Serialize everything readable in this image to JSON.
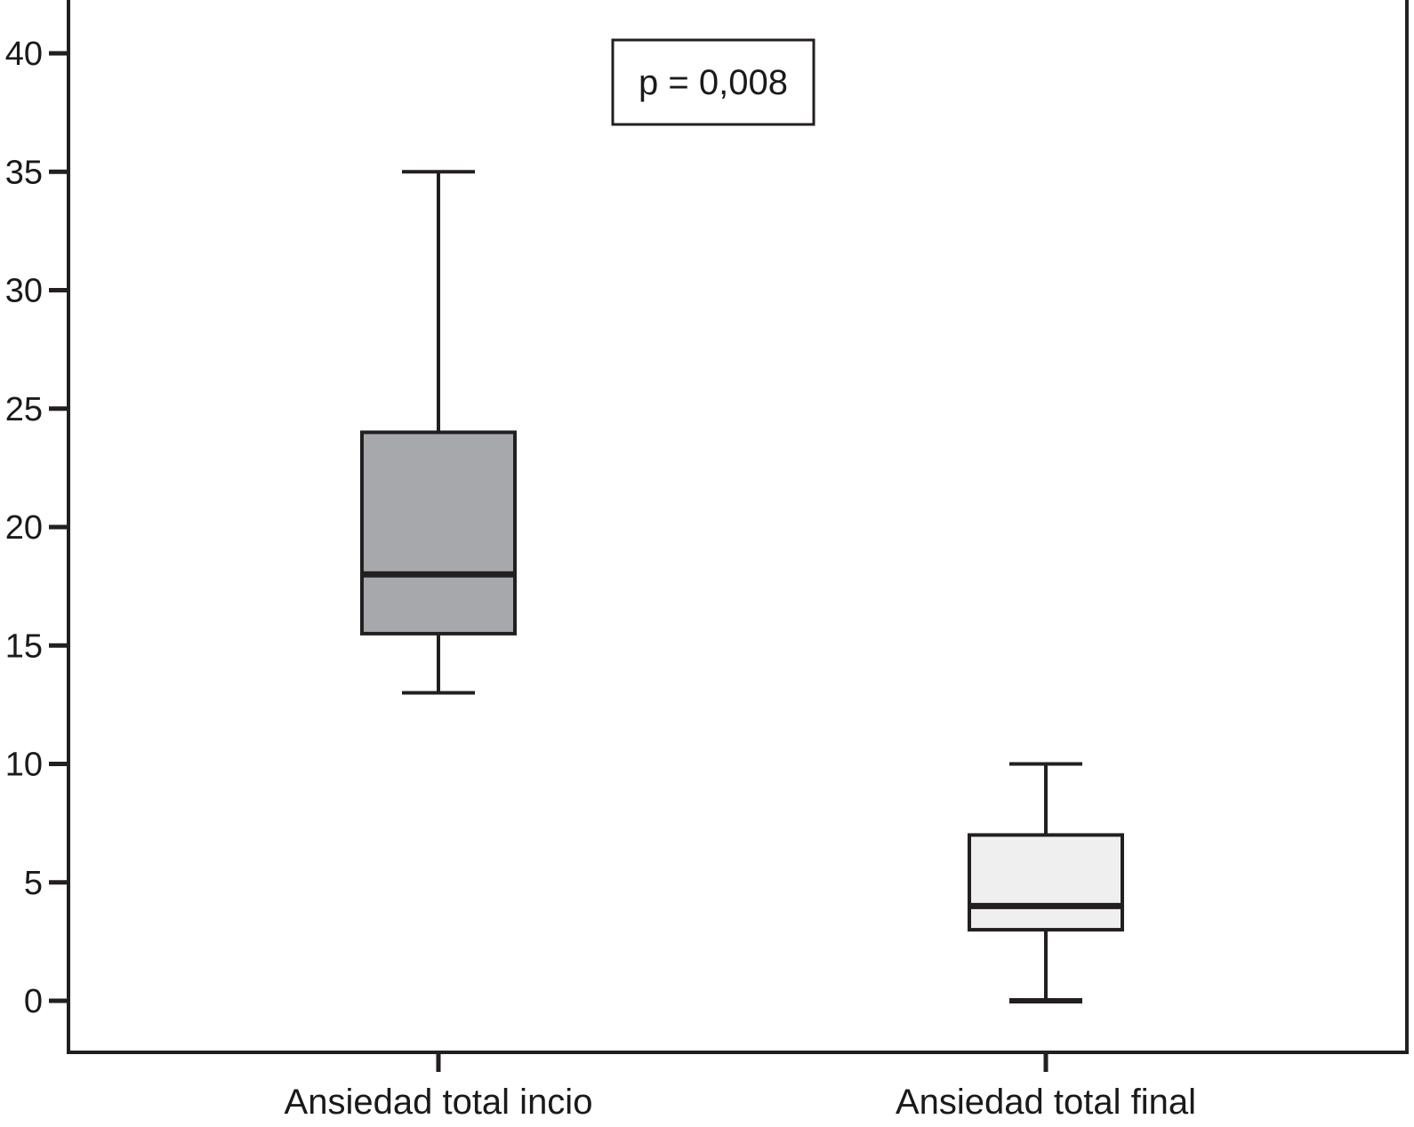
{
  "chart_data": {
    "type": "boxplot",
    "title": "",
    "xlabel": "",
    "ylabel": "",
    "ylim": [
      -2.2,
      42.3
    ],
    "yticks": [
      0,
      5,
      10,
      15,
      20,
      25,
      30,
      35,
      40
    ],
    "ytick_labels": [
      "0",
      "5",
      "10",
      "15",
      "20",
      "25",
      "30",
      "35",
      "40"
    ],
    "grid": false,
    "categories": [
      "Ansiedad total incio",
      "Ansiedad total final"
    ],
    "boxes": [
      {
        "category": "Ansiedad total incio",
        "min": 13,
        "q1": 15.5,
        "median": 18,
        "q3": 24,
        "max": 35,
        "fill": "#a7a8ab"
      },
      {
        "category": "Ansiedad total final",
        "min": 0,
        "q1": 3,
        "median": 4,
        "q3": 7,
        "max": 10,
        "fill": "#efefef"
      }
    ],
    "annotation": {
      "text": "p = 0,008",
      "position": "top-center"
    }
  },
  "colors": {
    "stroke": "#231f20",
    "background": "#ffffff"
  }
}
